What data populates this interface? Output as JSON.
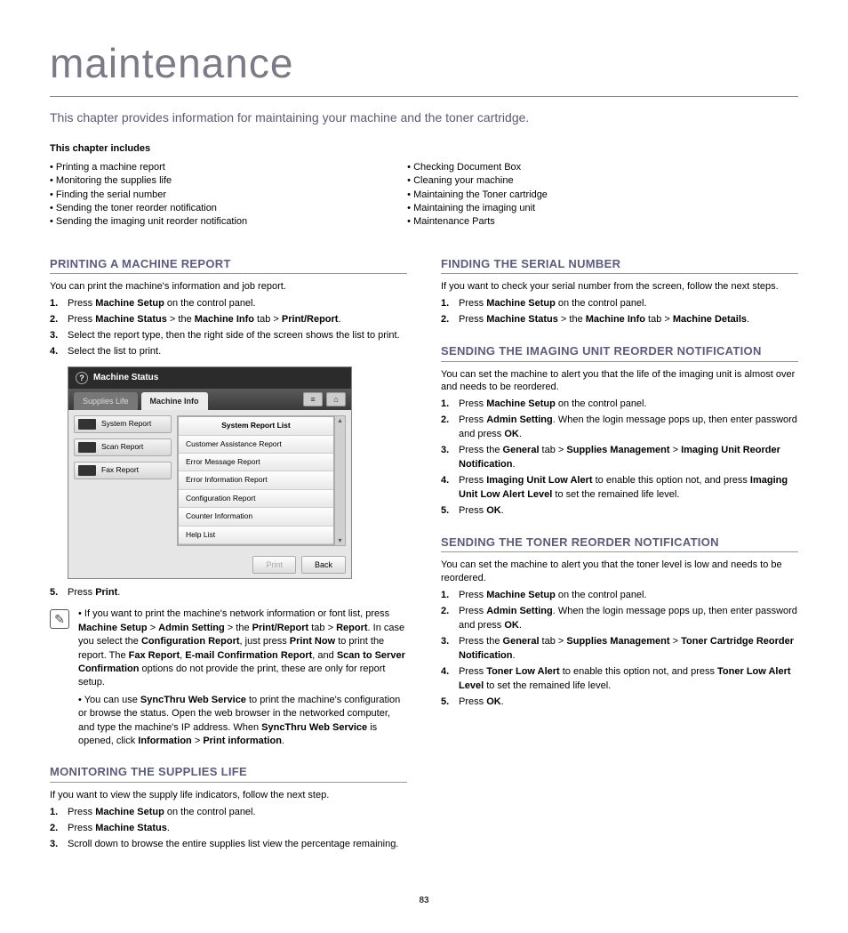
{
  "page": {
    "title": "maintenance",
    "subtitle": "This chapter provides information for maintaining your machine and the toner cartridge.",
    "includes_label": "This chapter includes",
    "page_number": "83"
  },
  "includes": {
    "left": [
      "Printing a machine report",
      "Monitoring the supplies life",
      "Finding the serial number",
      "Sending the toner reorder notification",
      "Sending the imaging unit reorder notification"
    ],
    "right": [
      "Checking Document Box",
      "Cleaning your machine",
      "Maintaining the Toner cartridge",
      "Maintaining the imaging unit",
      "Maintenance Parts"
    ]
  },
  "left_col": {
    "s1": {
      "heading": "PRINTING A MACHINE REPORT",
      "intro": "You can print the machine's information and job report.",
      "step1a": "Press ",
      "step1b": "Machine Setup",
      "step1c": " on the control panel.",
      "step2a": "Press ",
      "step2b": "Machine Status",
      "step2c": " > the ",
      "step2d": "Machine Info",
      "step2e": " tab > ",
      "step2f": "Print/Report",
      "step2g": ".",
      "step3": "Select the report type, then the right side of the screen shows the list to print.",
      "step4": "Select the list to print.",
      "step5a": "Press ",
      "step5b": "Print",
      "step5c": ".",
      "note1": "If you want to print the machine's network information or font list, press <b>Machine Setup</b> > <b>Admin Setting</b> > the <b>Print/Report</b> tab > <b>Report</b>. In case you select the <b>Configuration Report</b>, just press <b>Print Now</b> to print the report. The <b>Fax Report</b>, <b>E-mail Confirmation Report</b>, and <b>Scan to Server Confirmation</b> options do not provide the print, these are only for report setup.",
      "note2": "You can use <b>SyncThru Web Service</b> to print the machine's configuration or browse the status. Open the web browser in the networked computer, and type the machine's IP address. When <b>SyncThru Web Service</b> is opened, click <b>Information</b> > <b>Print information</b>."
    },
    "s2": {
      "heading": "MONITORING THE SUPPLIES LIFE",
      "intro": "If you want to view the supply life indicators, follow the next step.",
      "step1a": "Press ",
      "step1b": "Machine Setup",
      "step1c": " on the control panel.",
      "step2a": "Press ",
      "step2b": "Machine Status",
      "step2c": ".",
      "step3": "Scroll down to browse the entire supplies list view the percentage remaining."
    }
  },
  "right_col": {
    "s1": {
      "heading": "FINDING THE SERIAL NUMBER",
      "intro": "If you want to check your serial number from the screen, follow the next steps.",
      "step1a": "Press ",
      "step1b": "Machine Setup",
      "step1c": " on the control panel.",
      "step2a": "Press ",
      "step2b": "Machine Status",
      "step2c": " > the ",
      "step2d": "Machine Info",
      "step2e": " tab > ",
      "step2f": "Machine Details",
      "step2g": "."
    },
    "s2": {
      "heading": "SENDING THE IMAGING UNIT REORDER NOTIFICATION",
      "intro": "You can set the machine to alert you that the life of the imaging unit is almost over and needs to be reordered.",
      "step1a": "Press ",
      "step1b": "Machine Setup",
      "step1c": " on the control panel.",
      "step2a": "Press ",
      "step2b": "Admin Setting",
      "step2c": ". When the login message pops up, then enter password and press ",
      "step2d": "OK",
      "step2e": ".",
      "step3a": "Press the ",
      "step3b": "General",
      "step3c": " tab > ",
      "step3d": "Supplies Management",
      "step3e": " > ",
      "step3f": "Imaging Unit Reorder Notification",
      "step3g": ".",
      "step4a": "Press ",
      "step4b": "Imaging Unit Low Alert",
      "step4c": " to enable this option not, and press ",
      "step4d": "Imaging Unit Low Alert Level",
      "step4e": " to set the remained life level.",
      "step5a": "Press ",
      "step5b": "OK",
      "step5c": "."
    },
    "s3": {
      "heading": "SENDING THE TONER REORDER NOTIFICATION",
      "intro": "You can set the machine to alert you that the toner level is low and needs to be reordered.",
      "step1a": "Press ",
      "step1b": "Machine Setup",
      "step1c": " on the control panel.",
      "step2a": "Press ",
      "step2b": "Admin Setting",
      "step2c": ". When the login message pops up, then enter password and press ",
      "step2d": "OK",
      "step2e": ".",
      "step3a": "Press the ",
      "step3b": "General",
      "step3c": " tab > ",
      "step3d": "Supplies Management",
      "step3e": " > ",
      "step3f": "Toner Cartridge Reorder Notification",
      "step3g": ".",
      "step4a": "Press ",
      "step4b": "Toner Low Alert",
      "step4c": " to enable this option not, and press ",
      "step4d": "Toner Low Alert Level",
      "step4e": " to set the remained life level.",
      "step5a": "Press ",
      "step5b": "OK",
      "step5c": "."
    }
  },
  "ui": {
    "title": "Machine Status",
    "tab1": "Supplies Life",
    "tab2": "Machine Info",
    "left_buttons": [
      "System Report",
      "Scan Report",
      "Fax Report"
    ],
    "list": [
      "System Report List",
      "Customer Assistance Report",
      "Error Message Report",
      "Error Information Report",
      "Configuration Report",
      "Counter Information",
      "Help List"
    ],
    "print_btn": "Print",
    "back_btn": "Back"
  }
}
